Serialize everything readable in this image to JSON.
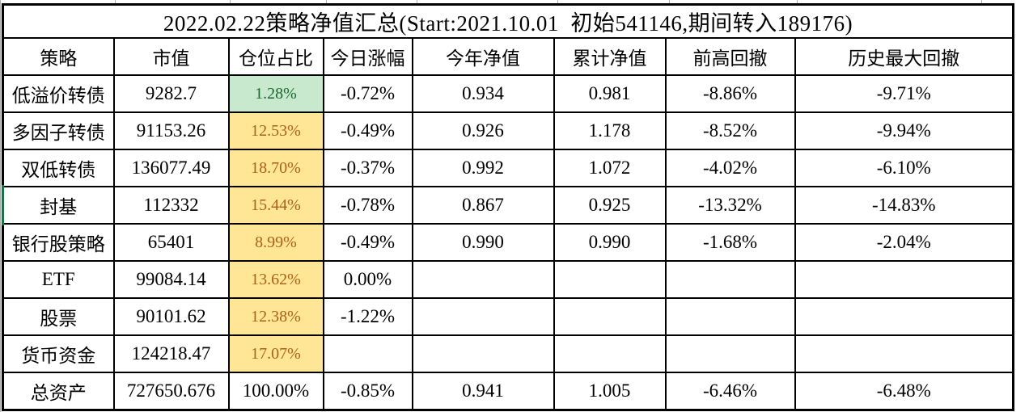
{
  "title": "2022.02.22策略净值汇总(Start:2021.10.01  初始541146,期间转入189176)",
  "table": {
    "columns": [
      "策略",
      "市值",
      "仓位占比",
      "今日涨幅",
      "今年净值",
      "累计净值",
      "前高回撤",
      "历史最大回撤"
    ],
    "rows": [
      {
        "cells": [
          "低溢价转债",
          "9282.7",
          "1.28%",
          "-0.72%",
          "0.934",
          "0.981",
          "-8.86%",
          "-9.71%"
        ],
        "position_highlight": "green",
        "left_marker": false
      },
      {
        "cells": [
          "多因子转债",
          "91153.26",
          "12.53%",
          "-0.49%",
          "0.926",
          "1.178",
          "-8.52%",
          "-9.94%"
        ],
        "position_highlight": "yellow",
        "left_marker": false
      },
      {
        "cells": [
          "双低转债",
          "136077.49",
          "18.70%",
          "-0.37%",
          "0.992",
          "1.072",
          "-4.02%",
          "-6.10%"
        ],
        "position_highlight": "yellow",
        "left_marker": false
      },
      {
        "cells": [
          "封基",
          "112332",
          "15.44%",
          "-0.78%",
          "0.867",
          "0.925",
          "-13.32%",
          "-14.83%"
        ],
        "position_highlight": "yellow",
        "left_marker": true
      },
      {
        "cells": [
          "银行股策略",
          "65401",
          "8.99%",
          "-0.49%",
          "0.990",
          "0.990",
          "-1.68%",
          "-2.04%"
        ],
        "position_highlight": "yellow",
        "left_marker": false
      },
      {
        "cells": [
          "ETF",
          "99084.14",
          "13.62%",
          "0.00%",
          "",
          "",
          "",
          ""
        ],
        "position_highlight": "yellow",
        "left_marker": false
      },
      {
        "cells": [
          "股票",
          "90101.62",
          "12.38%",
          "-1.22%",
          "",
          "",
          "",
          ""
        ],
        "position_highlight": "yellow",
        "left_marker": false
      },
      {
        "cells": [
          "货币资金",
          "124218.47",
          "17.07%",
          "",
          "",
          "",
          "",
          ""
        ],
        "position_highlight": "yellow",
        "left_marker": false
      },
      {
        "cells": [
          "总资产",
          "727650.676",
          "100.00%",
          "-0.85%",
          "0.941",
          "1.005",
          "-6.46%",
          "-6.48%"
        ],
        "position_highlight": "none",
        "left_marker": false
      }
    ]
  },
  "colors": {
    "green_cell_bg": "#C9E9CF",
    "green_cell_text": "#17692F",
    "yellow_cell_bg": "#FFE596",
    "yellow_cell_text": "#A9611B",
    "row_marker_green": "#1E7145",
    "grid_line": "#000000"
  }
}
